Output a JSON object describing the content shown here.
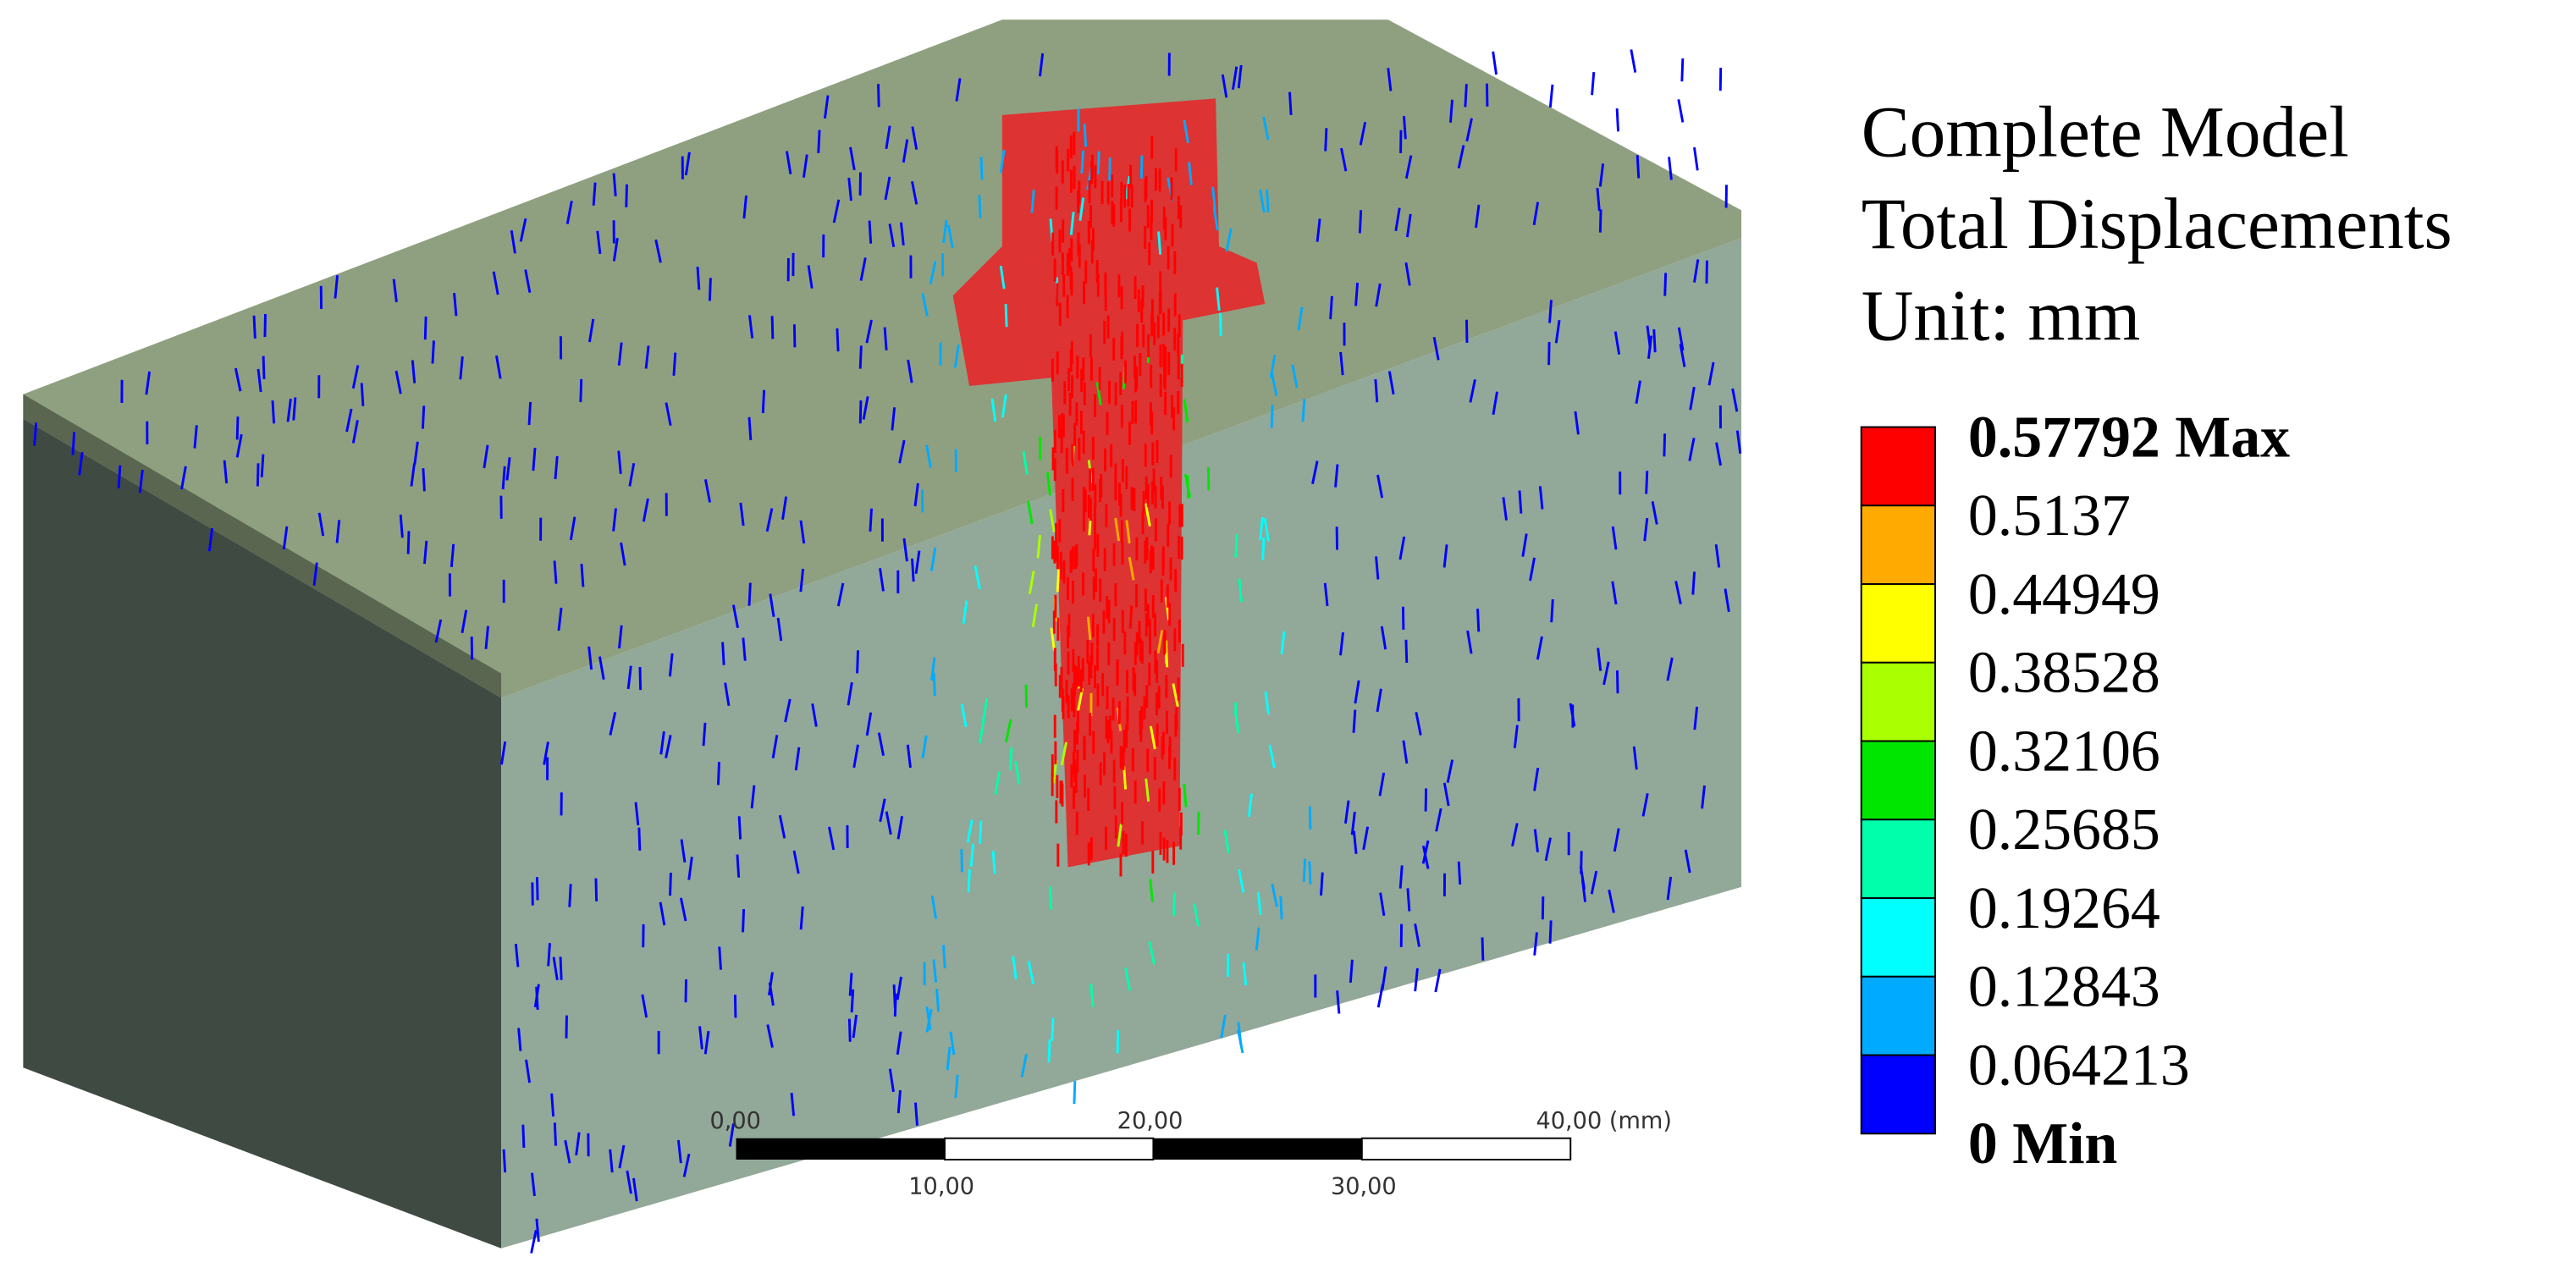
{
  "legend": {
    "title_lines": [
      "Complete Model",
      "Total Displacements",
      "Unit: mm"
    ],
    "labels": [
      "0.57792 Max",
      "0.5137",
      "0.44949",
      "0.38528",
      "0.32106",
      "0.25685",
      "0.19264",
      "0.12843",
      "0.064213",
      "0 Min"
    ],
    "colors": [
      "#ff0000",
      "#ffaa00",
      "#ffff00",
      "#aaff00",
      "#00e600",
      "#00ffaa",
      "#00ffff",
      "#00aaff",
      "#0000ff"
    ]
  },
  "scale_bar": {
    "top_labels": [
      "0,00",
      "20,00",
      "40,00 (mm)"
    ],
    "bottom_labels": [
      "10,00",
      "30,00"
    ]
  }
}
